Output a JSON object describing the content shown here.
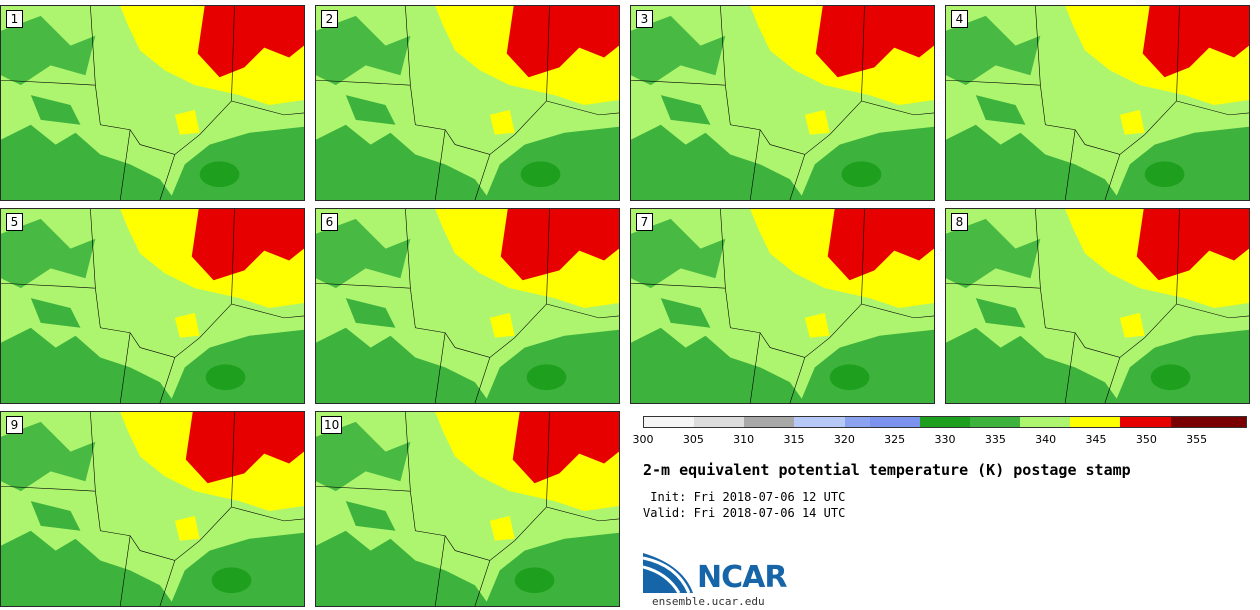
{
  "panels": [
    {
      "label": "1"
    },
    {
      "label": "2"
    },
    {
      "label": "3"
    },
    {
      "label": "4"
    },
    {
      "label": "5"
    },
    {
      "label": "6"
    },
    {
      "label": "7"
    },
    {
      "label": "8"
    },
    {
      "label": "9"
    },
    {
      "label": "10"
    }
  ],
  "colorbar": {
    "colors": [
      "#f5f5f5",
      "#f5f5f5",
      "#dcdcdc",
      "#dcdcdc",
      "#a8a8a8",
      "#a8a8a8",
      "#b7c9f7",
      "#b7c9f7",
      "#8aa2f0",
      "#7b93ee",
      "#7b93ee",
      "#1ea01e",
      "#1ea01e",
      "#3db33d",
      "#3db33d",
      "#aef56f",
      "#aef56f",
      "#ffff00",
      "#ffff00",
      "#e60000",
      "#e60000",
      "#7a0000",
      "#7a0000",
      "#7a0000"
    ],
    "ticks": [
      "300",
      "305",
      "310",
      "315",
      "320",
      "325",
      "330",
      "335",
      "340",
      "345",
      "350",
      "355"
    ]
  },
  "title": "2-m equivalent potential temperature (K) postage stamp",
  "init_label": " Init: Fri 2018-07-06 12 UTC",
  "valid_label": "Valid: Fri 2018-07-06 14 UTC",
  "logo_text": "NCAR",
  "site_url": "ensemble.ucar.edu",
  "field_colors": {
    "base": "#aef56f",
    "green": "#3db33d",
    "dark_green": "#1ea01e",
    "yellow": "#ffff00",
    "red": "#e60000"
  }
}
